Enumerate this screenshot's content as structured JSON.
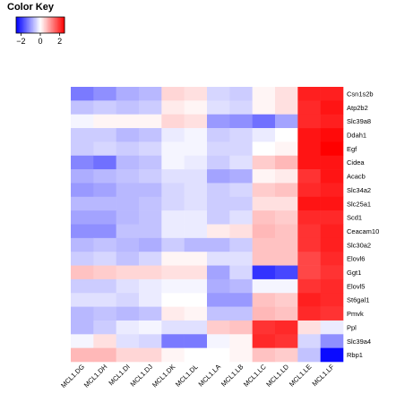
{
  "chart_data": {
    "type": "heatmap",
    "color_key": {
      "title": "Color Key",
      "ticks": [
        -2,
        0,
        2
      ],
      "tick_labels": [
        "−2",
        "0",
        "2"
      ],
      "range": [
        -2.5,
        2.5
      ],
      "colors": {
        "low": "#0000ff",
        "mid": "#ffffff",
        "high": "#ff0000"
      }
    },
    "columns": [
      "MCL1.DG",
      "MCL1.DH",
      "MCL1.DI",
      "MCL1.DJ",
      "MCL1.DK",
      "MCL1.DL",
      "MCL1.LA",
      "MCL1.LB",
      "MCL1.LC",
      "MCL1.LD",
      "MCL1.LE",
      "MCL1.LF"
    ],
    "rows": [
      "Csn1s2b",
      "Atp2b2",
      "Slc39a8",
      "Ddah1",
      "Egf",
      "Cidea",
      "Acacb",
      "Slc34a2",
      "Slc25a1",
      "Scd1",
      "Ceacam10",
      "Slc30a2",
      "Elovl6",
      "Ggt1",
      "Elovl5",
      "St6gal1",
      "Pmvk",
      "Ppl",
      "Slc39a4",
      "Rbp1"
    ],
    "values": [
      [
        -1.3,
        -1.1,
        -0.8,
        -0.7,
        0.4,
        0.3,
        -0.4,
        -0.5,
        0.1,
        0.3,
        2.2,
        2.2
      ],
      [
        -0.6,
        -0.5,
        -0.6,
        -0.5,
        0.2,
        0.1,
        -0.3,
        -0.4,
        0.1,
        0.3,
        2.1,
        2.3
      ],
      [
        -0.1,
        0.1,
        0.1,
        0.1,
        0.4,
        0.3,
        -1.0,
        -1.1,
        -1.4,
        -0.9,
        2.1,
        2.2
      ],
      [
        -0.5,
        -0.5,
        -0.7,
        -0.6,
        -0.2,
        -0.1,
        -0.5,
        -0.4,
        -0.2,
        0.0,
        2.3,
        2.4
      ],
      [
        -0.5,
        -0.4,
        -0.5,
        -0.4,
        -0.1,
        -0.1,
        -0.4,
        -0.4,
        0.0,
        0.1,
        2.3,
        2.5
      ],
      [
        -1.2,
        -1.4,
        -0.7,
        -0.6,
        -0.1,
        -0.2,
        -0.5,
        -0.3,
        0.5,
        0.7,
        2.3,
        2.3
      ],
      [
        -0.8,
        -0.7,
        -0.6,
        -0.5,
        -0.3,
        -0.3,
        -0.9,
        -0.8,
        0.1,
        0.2,
        2.0,
        2.3
      ],
      [
        -1.0,
        -0.9,
        -0.7,
        -0.7,
        -0.4,
        -0.3,
        -0.5,
        -0.4,
        0.5,
        0.6,
        2.1,
        2.2
      ],
      [
        -0.7,
        -0.7,
        -0.7,
        -0.6,
        -0.4,
        -0.3,
        -0.5,
        -0.5,
        0.3,
        0.3,
        2.3,
        2.3
      ],
      [
        -0.9,
        -0.9,
        -0.7,
        -0.6,
        -0.2,
        -0.2,
        -0.5,
        -0.3,
        0.6,
        0.5,
        2.1,
        2.1
      ],
      [
        -1.1,
        -1.1,
        -0.6,
        -0.6,
        -0.2,
        -0.2,
        0.2,
        0.3,
        0.7,
        0.6,
        2.0,
        2.2
      ],
      [
        -0.7,
        -0.6,
        -0.7,
        -0.8,
        -0.5,
        -0.7,
        -0.7,
        -0.5,
        0.6,
        0.6,
        2.0,
        2.2
      ],
      [
        -0.5,
        -0.4,
        -0.6,
        -0.4,
        0.1,
        0.1,
        -0.3,
        -0.3,
        0.6,
        0.6,
        1.8,
        2.1
      ],
      [
        0.6,
        0.5,
        0.4,
        0.4,
        0.3,
        0.3,
        -0.9,
        -0.4,
        -2.0,
        -1.8,
        1.8,
        2.0
      ],
      [
        -0.5,
        -0.5,
        -0.3,
        -0.2,
        -0.1,
        -0.1,
        -0.8,
        -0.7,
        -0.1,
        -0.1,
        2.0,
        2.1
      ],
      [
        -0.3,
        -0.3,
        -0.4,
        -0.2,
        0.0,
        0.0,
        -1.0,
        -1.0,
        0.6,
        0.5,
        2.2,
        2.1
      ],
      [
        -0.7,
        -0.6,
        -0.7,
        -0.6,
        0.2,
        0.1,
        -0.6,
        -0.6,
        0.7,
        0.6,
        2.1,
        2.0
      ],
      [
        -0.7,
        -0.5,
        -0.2,
        -0.1,
        -0.3,
        -0.3,
        0.5,
        0.6,
        2.0,
        2.1,
        0.3,
        -0.2
      ],
      [
        -0.1,
        0.3,
        -0.3,
        -0.4,
        -1.3,
        -1.3,
        -0.1,
        0.1,
        2.1,
        2.0,
        -0.4,
        -1.1
      ],
      [
        0.7,
        0.7,
        0.4,
        0.4,
        0.1,
        0.0,
        0.0,
        0.1,
        0.6,
        0.5,
        -0.6,
        -2.4
      ]
    ]
  }
}
